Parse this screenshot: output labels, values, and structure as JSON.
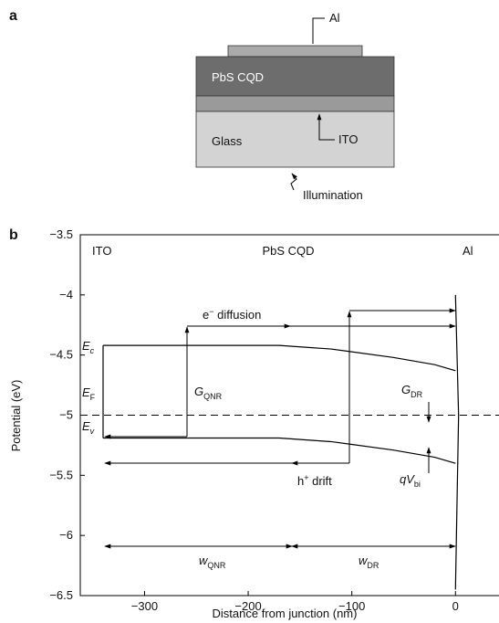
{
  "figure_a": {
    "panel_label": "a",
    "layers": [
      "PbS CQD",
      "Glass"
    ],
    "labels": [
      "Al",
      "ITO",
      "Illumination"
    ]
  },
  "chart_data": {
    "type": "line",
    "panel_label": "b",
    "xlabel": "Distance from junction (nm)",
    "ylabel": "Potential (eV)",
    "xlim": [
      -362,
      42
    ],
    "ylim": [
      -6.5,
      -3.5
    ],
    "xticks": [
      {
        "value": -300,
        "label": "−300"
      },
      {
        "value": -200,
        "label": "−200"
      },
      {
        "value": -100,
        "label": "−100"
      },
      0
    ],
    "yticks": [
      {
        "value": -3.5,
        "label": "−3.5"
      },
      {
        "value": -4,
        "label": "−4"
      },
      {
        "value": -4.5,
        "label": "−4.5"
      },
      {
        "value": -5,
        "label": "−5"
      },
      {
        "value": -5.5,
        "label": "−5.5"
      },
      {
        "value": -6,
        "label": "−6"
      },
      {
        "value": -6.5,
        "label": "−6.5"
      }
    ],
    "series": [
      {
        "color": "#000",
        "x": [
          -340,
          -170,
          -120,
          -60,
          -20,
          0
        ],
        "values": [
          -4.42,
          -4.42,
          -4.45,
          -4.52,
          -4.58,
          -4.63
        ]
      },
      {
        "color": "#000",
        "x": [
          -340,
          -170,
          -120,
          -60,
          -20,
          0
        ],
        "values": [
          -5.19,
          -5.19,
          -5.22,
          -5.29,
          -5.35,
          -5.4
        ]
      },
      {
        "color": "#000",
        "x": [
          -340,
          -340
        ],
        "values": [
          -4.42,
          -5.19
        ]
      },
      {
        "color": "#000",
        "x": [
          0,
          3,
          0
        ],
        "values": [
          -4.0,
          -5.0,
          -6.45
        ]
      }
    ],
    "reference_line": {
      "value": -5,
      "dashed": true
    },
    "regions": [
      "ITO",
      "PbS CQD",
      "Al"
    ],
    "annotations": {
      "ec": {
        "text": "E",
        "sub": "c"
      },
      "ef": {
        "text": "E",
        "sub": "F"
      },
      "ev": {
        "text": "E",
        "sub": "v"
      },
      "diffusion": {
        "text": "e",
        "sup": "−",
        "rest": " diffusion"
      },
      "drift": {
        "text": "h",
        "sup": "+",
        "rest": " drift"
      },
      "gqnr": {
        "text": "G",
        "sub": "QNR"
      },
      "gdr": {
        "text": "G",
        "sub": "DR"
      },
      "qvbi": {
        "text": "qV",
        "sub": "bi"
      },
      "wqnr": {
        "text": "w",
        "sub": "QNR"
      },
      "wdr": {
        "text": "w",
        "sub": "DR"
      }
    }
  }
}
